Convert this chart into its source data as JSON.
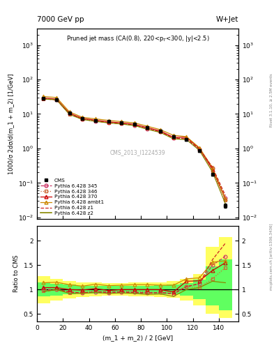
{
  "title_top_left": "7000 GeV pp",
  "title_top_right": "W+Jet",
  "panel_title": "Pruned jet mass (CA(0.8), 220<p$_{T}$<300, |y|<2.5)",
  "xlabel": "(m_1 + m_2) / 2 [GeV]",
  "ylabel_top": "1000/σ 2dσ/d(m_1 + m_2) [1/GeV]",
  "ylabel_bottom": "Ratio to CMS",
  "watermark": "CMS_2013_I1224539",
  "right_label": "mcplots.cern.ch [arXiv:1306.3436]",
  "right_label2": "Rivet 3.1.10, ≥ 2.5M events",
  "x": [
    5,
    15,
    25,
    35,
    45,
    55,
    65,
    75,
    85,
    95,
    105,
    115,
    125,
    135,
    145
  ],
  "cms_y": [
    28,
    26,
    10.5,
    7.5,
    6.5,
    6.0,
    5.5,
    5.0,
    4.0,
    3.2,
    2.2,
    1.8,
    0.85,
    0.18,
    0.022
  ],
  "cms_yerr": [
    2.0,
    2.0,
    0.8,
    0.6,
    0.5,
    0.45,
    0.4,
    0.38,
    0.32,
    0.26,
    0.18,
    0.15,
    0.07,
    0.015,
    0.003
  ],
  "p345_y": [
    28,
    26,
    10.0,
    7.0,
    6.2,
    5.6,
    5.2,
    4.7,
    3.7,
    3.0,
    2.0,
    1.9,
    0.95,
    0.27,
    0.037
  ],
  "p346_y": [
    27,
    26,
    9.8,
    7.1,
    6.3,
    5.7,
    5.3,
    4.8,
    3.8,
    3.0,
    2.1,
    1.9,
    0.88,
    0.22,
    0.032
  ],
  "p370_y": [
    29,
    27,
    10.5,
    7.4,
    6.6,
    5.9,
    5.5,
    5.0,
    4.0,
    3.2,
    2.1,
    2.1,
    1.0,
    0.25,
    0.034
  ],
  "pambt1_y": [
    32,
    30,
    11.5,
    8.0,
    7.2,
    6.5,
    6.0,
    5.5,
    4.4,
    3.5,
    2.4,
    2.2,
    1.05,
    0.28,
    0.035
  ],
  "pz1_y": [
    27,
    26,
    10.0,
    7.0,
    6.2,
    5.7,
    5.2,
    4.7,
    3.7,
    3.0,
    2.0,
    1.9,
    0.95,
    0.29,
    0.043
  ],
  "pz2_y": [
    27,
    26,
    9.7,
    6.9,
    6.1,
    5.5,
    5.1,
    4.6,
    3.6,
    2.9,
    1.9,
    1.8,
    0.88,
    0.21,
    0.025
  ],
  "ratio_p345": [
    1.0,
    1.0,
    0.95,
    0.93,
    0.95,
    0.93,
    0.95,
    0.94,
    0.93,
    0.94,
    0.91,
    1.06,
    1.12,
    1.5,
    1.68
  ],
  "ratio_p346": [
    0.97,
    1.0,
    0.93,
    0.95,
    0.97,
    0.95,
    0.96,
    0.96,
    0.95,
    0.94,
    0.95,
    1.06,
    1.04,
    1.22,
    1.45
  ],
  "ratio_p370": [
    1.04,
    1.04,
    1.0,
    0.99,
    1.02,
    0.98,
    1.0,
    1.0,
    1.0,
    1.0,
    0.95,
    1.17,
    1.18,
    1.39,
    1.55
  ],
  "ratio_pambt1": [
    1.14,
    1.15,
    1.1,
    1.07,
    1.11,
    1.08,
    1.09,
    1.1,
    1.1,
    1.09,
    1.09,
    1.22,
    1.24,
    1.56,
    1.59
  ],
  "ratio_pz1": [
    0.96,
    1.0,
    0.95,
    0.93,
    0.95,
    0.95,
    0.95,
    0.94,
    0.93,
    0.94,
    0.91,
    1.06,
    1.12,
    1.61,
    1.95
  ],
  "ratio_pz2": [
    0.96,
    1.0,
    0.92,
    0.92,
    0.94,
    0.92,
    0.93,
    0.92,
    0.9,
    0.91,
    0.86,
    1.0,
    1.04,
    1.17,
    1.14
  ],
  "band_yellow_lo": [
    0.72,
    0.78,
    0.82,
    0.85,
    0.86,
    0.87,
    0.87,
    0.86,
    0.86,
    0.85,
    0.83,
    0.78,
    0.68,
    0.5,
    0.42
  ],
  "band_yellow_hi": [
    1.28,
    1.22,
    1.18,
    1.15,
    1.14,
    1.13,
    1.13,
    1.14,
    1.14,
    1.15,
    1.17,
    1.22,
    1.32,
    1.88,
    2.08
  ],
  "band_green_lo": [
    0.86,
    0.88,
    0.9,
    0.92,
    0.92,
    0.93,
    0.93,
    0.92,
    0.92,
    0.91,
    0.9,
    0.87,
    0.8,
    0.68,
    0.58
  ],
  "band_green_hi": [
    1.14,
    1.12,
    1.1,
    1.08,
    1.08,
    1.07,
    1.07,
    1.08,
    1.08,
    1.09,
    1.1,
    1.13,
    1.2,
    1.47,
    1.62
  ],
  "color_345": "#cc3366",
  "color_346": "#cc6633",
  "color_370": "#cc0000",
  "color_ambt1": "#cc8800",
  "color_z1": "#cc2222",
  "color_z2": "#888800",
  "color_cms": "black",
  "color_yellow": "#ffff60",
  "color_green": "#60ff60"
}
